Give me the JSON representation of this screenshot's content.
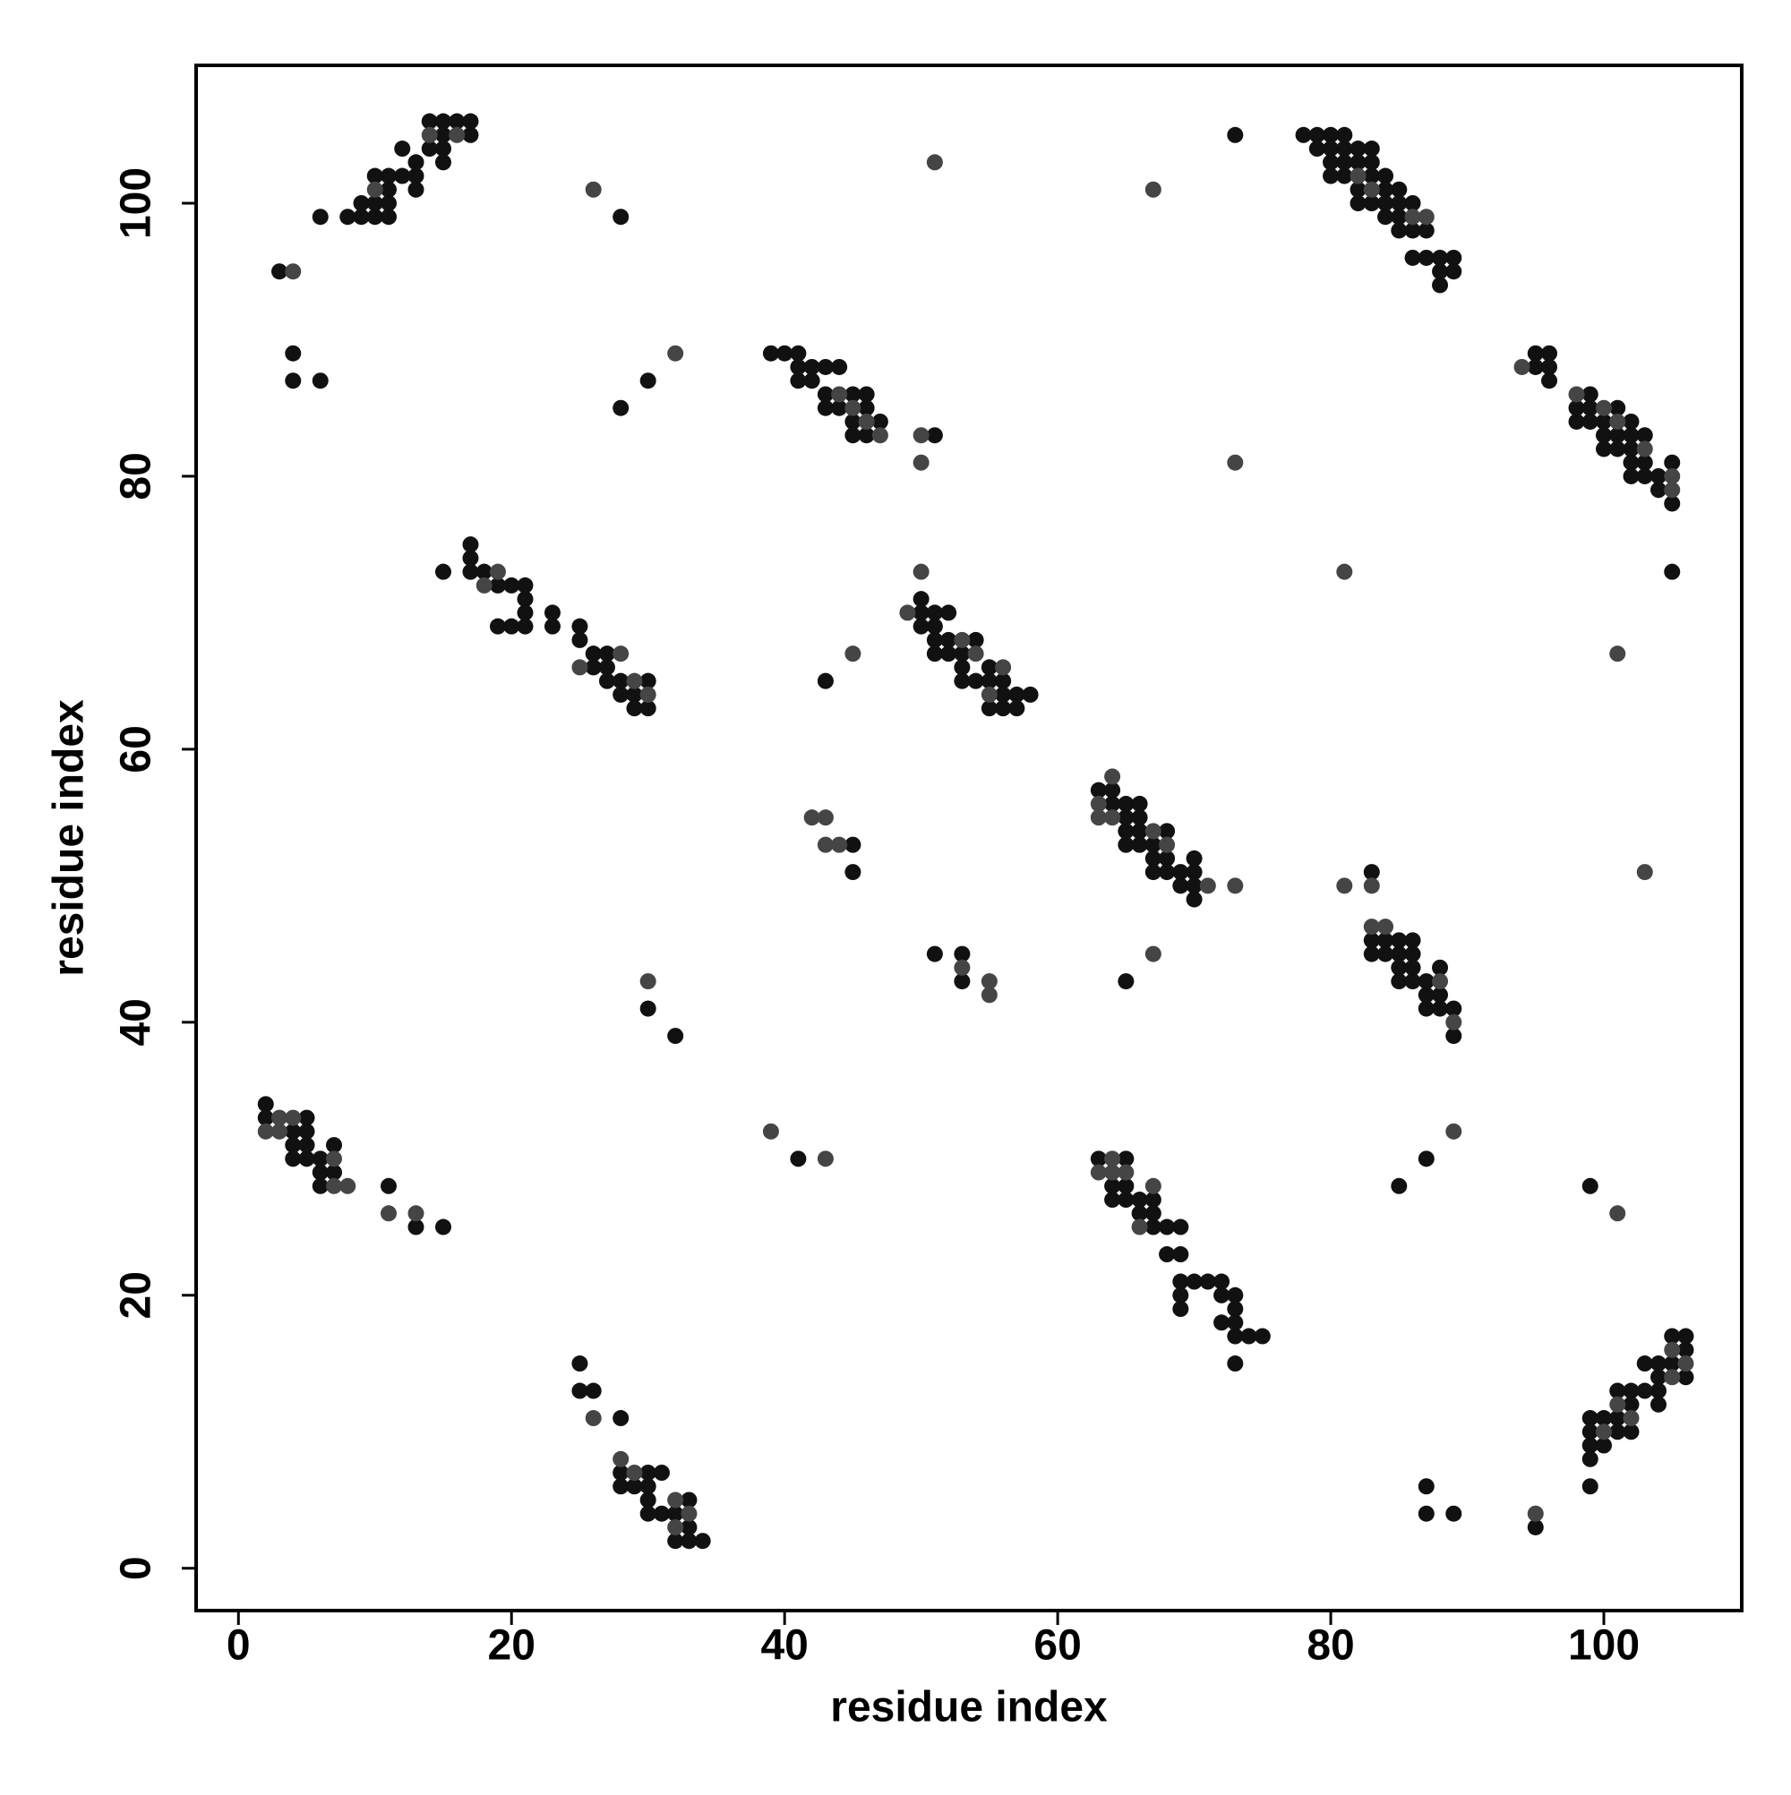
{
  "chart_data": {
    "type": "scatter",
    "x_label": "residue index",
    "y_label": "residue index",
    "xlim": [
      -3.1,
      110.1
    ],
    "ylim": [
      -3.1,
      110.1
    ],
    "xticks": [
      0,
      20,
      40,
      60,
      80,
      100
    ],
    "yticks": [
      0,
      20,
      40,
      60,
      80,
      100
    ],
    "grid": false,
    "series": [
      {
        "color": "#111111",
        "x": [
          14,
          15,
          16,
          17,
          15,
          17,
          12,
          14,
          15,
          13,
          15,
          10,
          11,
          12,
          13,
          11,
          13,
          9,
          10,
          11,
          6,
          8,
          9,
          10,
          11,
          3,
          4,
          4,
          6,
          28,
          30,
          28,
          73,
          78,
          79,
          80,
          81,
          79,
          80,
          81,
          82,
          83,
          80,
          81,
          82,
          83,
          80,
          81,
          83,
          84,
          82,
          84,
          85,
          82,
          83,
          84,
          85,
          86,
          84,
          85,
          85,
          86,
          87,
          86,
          87,
          88,
          89,
          88,
          89,
          88,
          39,
          40,
          41,
          41,
          42,
          43,
          44,
          41,
          42,
          43,
          45,
          46,
          43,
          44,
          46,
          45,
          47,
          45,
          46,
          51,
          95,
          96,
          95,
          96,
          96,
          99,
          98,
          99,
          101,
          98,
          99,
          100,
          102,
          100,
          101,
          102,
          103,
          100,
          101,
          102,
          102,
          103,
          105,
          102,
          103,
          104,
          104,
          105,
          105,
          15,
          17,
          17,
          17,
          18,
          19,
          20,
          21,
          21,
          21,
          19,
          20,
          21,
          23,
          23,
          25,
          25,
          26,
          26,
          27,
          27,
          27,
          28,
          30,
          28,
          29,
          29,
          30,
          50,
          50,
          51,
          52,
          50,
          51,
          51,
          52,
          54,
          51,
          52,
          53,
          53,
          55,
          53,
          54,
          55,
          56,
          56,
          57,
          58,
          55,
          56,
          57,
          43,
          63,
          64,
          64,
          65,
          66,
          65,
          66,
          65,
          66,
          68,
          65,
          66,
          67,
          67,
          68,
          70,
          67,
          68,
          69,
          70,
          69,
          70,
          70,
          45,
          45,
          83,
          83,
          84,
          85,
          86,
          83,
          84,
          85,
          86,
          85,
          86,
          88,
          85,
          86,
          87,
          87,
          88,
          87,
          88,
          89,
          89,
          51,
          53,
          53,
          65,
          30,
          32,
          2,
          2,
          5,
          4,
          5,
          4,
          5,
          7,
          4,
          5,
          6,
          6,
          7,
          6,
          11,
          13,
          15,
          41,
          63,
          65,
          64,
          65,
          64,
          65,
          66,
          66,
          67,
          67,
          67,
          68,
          69,
          68,
          69,
          69,
          70,
          71,
          72,
          69,
          72,
          73,
          69,
          73,
          72,
          73,
          73,
          74,
          75,
          73,
          87,
          85,
          99,
          105,
          106,
          106,
          103,
          104,
          105,
          104,
          106,
          101,
          102,
          103,
          104,
          102,
          104,
          99,
          100,
          101,
          99,
          101,
          102,
          99,
          100,
          99,
          99,
          25,
          25,
          26,
          28,
          28,
          30,
          31,
          28,
          29,
          30,
          30,
          33,
          30,
          31,
          32,
          33,
          32,
          33,
          34,
          87,
          87,
          89,
          95
        ],
        "values": [
          106,
          106,
          106,
          106,
          105,
          105,
          104,
          104,
          104,
          103,
          103,
          102,
          102,
          102,
          102,
          101,
          101,
          100,
          100,
          100,
          99,
          99,
          99,
          99,
          99,
          95,
          89,
          87,
          87,
          99,
          87,
          85,
          105,
          105,
          105,
          105,
          105,
          104,
          104,
          104,
          104,
          104,
          103,
          103,
          103,
          103,
          102,
          102,
          102,
          102,
          101,
          101,
          101,
          100,
          100,
          100,
          100,
          100,
          99,
          99,
          98,
          98,
          98,
          96,
          96,
          96,
          96,
          95,
          95,
          94,
          89,
          89,
          89,
          88,
          88,
          88,
          88,
          87,
          87,
          86,
          86,
          86,
          85,
          85,
          85,
          84,
          84,
          83,
          83,
          83,
          89,
          89,
          88,
          88,
          87,
          86,
          85,
          85,
          85,
          84,
          84,
          84,
          84,
          83,
          83,
          83,
          83,
          82,
          82,
          82,
          81,
          81,
          81,
          80,
          80,
          80,
          79,
          78,
          73,
          73,
          75,
          74,
          73,
          73,
          72,
          72,
          72,
          71,
          70,
          69,
          69,
          69,
          70,
          69,
          69,
          68,
          67,
          66,
          67,
          66,
          65,
          65,
          65,
          64,
          64,
          63,
          63,
          71,
          70,
          70,
          70,
          69,
          69,
          68,
          68,
          68,
          67,
          67,
          67,
          66,
          66,
          65,
          65,
          65,
          65,
          64,
          64,
          64,
          63,
          63,
          63,
          65,
          57,
          57,
          56,
          56,
          56,
          55,
          55,
          54,
          54,
          54,
          53,
          53,
          53,
          52,
          52,
          52,
          51,
          51,
          51,
          51,
          50,
          50,
          49,
          53,
          51,
          51,
          46,
          46,
          46,
          46,
          45,
          45,
          45,
          45,
          44,
          44,
          44,
          43,
          43,
          43,
          42,
          42,
          41,
          41,
          41,
          39,
          45,
          45,
          43,
          43,
          41,
          39,
          34,
          33,
          33,
          32,
          32,
          31,
          31,
          31,
          30,
          30,
          30,
          29,
          29,
          28,
          28,
          25,
          25,
          30,
          30,
          30,
          28,
          28,
          27,
          27,
          27,
          26,
          26,
          27,
          25,
          25,
          25,
          23,
          23,
          21,
          21,
          21,
          21,
          20,
          20,
          20,
          19,
          19,
          18,
          18,
          17,
          17,
          17,
          15,
          30,
          28,
          28,
          17,
          17,
          16,
          15,
          15,
          15,
          14,
          14,
          13,
          13,
          13,
          13,
          12,
          12,
          11,
          11,
          11,
          10,
          10,
          10,
          9,
          9,
          8,
          6,
          15,
          13,
          13,
          11,
          7,
          7,
          7,
          6,
          6,
          6,
          5,
          5,
          4,
          4,
          4,
          3,
          2,
          2,
          2,
          6,
          4,
          4,
          3
        ]
      },
      {
        "color": "#454545",
        "x": [
          14,
          16,
          10,
          4,
          26,
          32,
          51,
          67,
          50,
          50,
          73,
          81,
          101,
          50,
          45,
          73,
          103,
          67,
          30,
          81,
          83,
          39,
          43,
          89,
          101,
          11,
          13,
          66,
          95,
          26,
          28,
          55,
          53,
          55,
          42,
          43,
          43,
          44,
          83,
          84,
          63,
          64,
          63,
          64,
          3,
          4,
          2,
          3,
          82,
          83,
          86,
          87,
          49,
          53,
          54,
          56,
          55,
          25,
          28,
          29,
          30,
          44,
          45,
          46,
          47,
          64,
          63,
          64,
          65,
          67,
          105,
          106,
          105,
          101,
          102,
          100,
          32,
          33,
          32,
          89,
          88,
          29,
          18,
          19,
          8,
          7,
          7,
          67,
          68,
          94,
          98,
          100,
          101,
          103,
          105,
          105,
          71
        ],
        "values": [
          105,
          105,
          101,
          95,
          101,
          89,
          103,
          101,
          83,
          81,
          81,
          73,
          67,
          73,
          67,
          50,
          51,
          45,
          43,
          50,
          50,
          32,
          30,
          32,
          26,
          26,
          26,
          25,
          4,
          11,
          8,
          42,
          44,
          43,
          55,
          55,
          53,
          53,
          47,
          47,
          56,
          58,
          55,
          55,
          33,
          33,
          32,
          32,
          102,
          101,
          99,
          99,
          70,
          68,
          67,
          66,
          64,
          66,
          67,
          65,
          64,
          86,
          85,
          84,
          83,
          30,
          29,
          29,
          29,
          28,
          16,
          15,
          14,
          12,
          11,
          10,
          5,
          4,
          3,
          40,
          43,
          7,
          72,
          73,
          28,
          28,
          30,
          54,
          53,
          88,
          86,
          85,
          84,
          82,
          80,
          79,
          50
        ]
      }
    ]
  }
}
